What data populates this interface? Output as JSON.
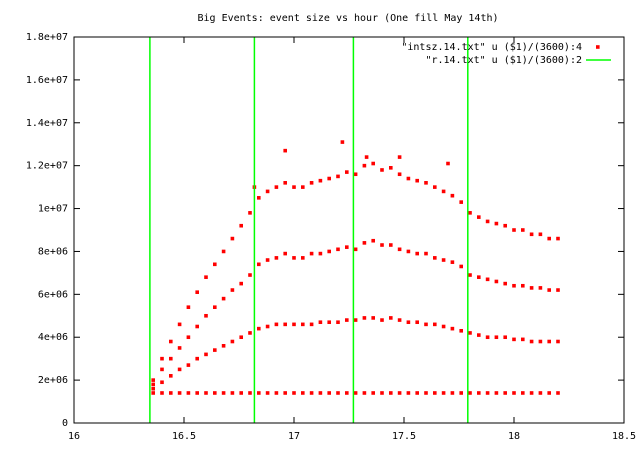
{
  "chart_data": {
    "type": "scatter",
    "title": "Big Events:  event size vs hour (One fill May 14th)",
    "xlim": [
      16,
      18.5
    ],
    "xticks": [
      16,
      16.5,
      17,
      17.5,
      18,
      18.5
    ],
    "ylim": [
      0,
      18000000
    ],
    "yticks": [
      0,
      {
        "value": 2000000,
        "label": "2e+06"
      },
      {
        "value": 4000000,
        "label": "4e+06"
      },
      {
        "value": 6000000,
        "label": "6e+06"
      },
      {
        "value": 8000000,
        "label": "8e+06"
      },
      {
        "value": 10000000,
        "label": "1e+07"
      },
      {
        "value": 12000000,
        "label": "1.2e+07"
      },
      {
        "value": 14000000,
        "label": "1.4e+07"
      },
      {
        "value": 16000000,
        "label": "1.6e+07"
      },
      {
        "value": 18000000,
        "label": "1.8e+07"
      }
    ],
    "grid": false,
    "legend": "top-right",
    "series": [
      {
        "name": "\"intsz.14.txt\" u ($1)/(3600):4",
        "color": "#ff0000",
        "style": "points",
        "x": [
          16.36,
          16.36,
          16.36,
          16.36,
          16.4,
          16.4,
          16.4,
          16.4,
          16.44,
          16.44,
          16.44,
          16.44,
          16.48,
          16.48,
          16.48,
          16.48,
          16.52,
          16.52,
          16.52,
          16.52,
          16.56,
          16.56,
          16.56,
          16.56,
          16.6,
          16.6,
          16.6,
          16.6,
          16.64,
          16.64,
          16.64,
          16.64,
          16.68,
          16.68,
          16.68,
          16.68,
          16.72,
          16.72,
          16.72,
          16.72,
          16.76,
          16.76,
          16.76,
          16.76,
          16.8,
          16.8,
          16.8,
          16.8,
          16.84,
          16.84,
          16.84,
          16.84,
          16.88,
          16.88,
          16.88,
          16.88,
          16.92,
          16.92,
          16.92,
          16.92,
          16.96,
          16.96,
          16.96,
          16.96,
          17,
          17,
          17,
          17,
          17.04,
          17.04,
          17.04,
          17.04,
          17.08,
          17.08,
          17.08,
          17.08,
          17.12,
          17.12,
          17.12,
          17.12,
          17.16,
          17.16,
          17.16,
          17.16,
          17.2,
          17.2,
          17.2,
          17.2,
          17.24,
          17.24,
          17.24,
          17.24,
          17.28,
          17.28,
          17.28,
          17.28,
          17.32,
          17.32,
          17.32,
          17.32,
          17.36,
          17.36,
          17.36,
          17.36,
          17.4,
          17.4,
          17.4,
          17.4,
          17.44,
          17.44,
          17.44,
          17.44,
          17.48,
          17.48,
          17.48,
          17.48,
          17.52,
          17.52,
          17.52,
          17.52,
          17.56,
          17.56,
          17.56,
          17.56,
          17.6,
          17.6,
          17.6,
          17.6,
          17.64,
          17.64,
          17.64,
          17.64,
          17.68,
          17.68,
          17.68,
          17.68,
          17.72,
          17.72,
          17.72,
          17.72,
          17.76,
          17.76,
          17.76,
          17.76,
          17.8,
          17.8,
          17.8,
          17.8,
          17.84,
          17.84,
          17.84,
          17.84,
          17.88,
          17.88,
          17.88,
          17.88,
          17.92,
          17.92,
          17.92,
          17.92,
          17.96,
          17.96,
          17.96,
          17.96,
          18,
          18,
          18,
          18,
          18.04,
          18.04,
          18.04,
          18.04,
          18.08,
          18.08,
          18.08,
          18.08,
          18.12,
          18.12,
          18.12,
          18.12,
          18.16,
          18.16,
          18.16,
          18.16,
          18.2,
          18.2,
          18.2,
          18.2,
          16.96,
          17.22,
          17.33,
          17.48,
          17.7,
          16.82
        ],
        "values": [
          1400000,
          1600000,
          1800000,
          2000000,
          1400000,
          1900000,
          2500000,
          3000000,
          1400000,
          2200000,
          3000000,
          3800000,
          1400000,
          2500000,
          3500000,
          4600000,
          1400000,
          2700000,
          4000000,
          5400000,
          1400000,
          3000000,
          4500000,
          6100000,
          1400000,
          3200000,
          5000000,
          6800000,
          1400000,
          3400000,
          5400000,
          7400000,
          1400000,
          3600000,
          5800000,
          8000000,
          1400000,
          3800000,
          6200000,
          8600000,
          1400000,
          4000000,
          6500000,
          9200000,
          1400000,
          4200000,
          6900000,
          9800000,
          1400000,
          4400000,
          7400000,
          10500000,
          1400000,
          4500000,
          7600000,
          10800000,
          1400000,
          4600000,
          7700000,
          11000000,
          1400000,
          4600000,
          7900000,
          11200000,
          1400000,
          4600000,
          7700000,
          11000000,
          1400000,
          4600000,
          7700000,
          11000000,
          1400000,
          4600000,
          7900000,
          11200000,
          1400000,
          4700000,
          7900000,
          11300000,
          1400000,
          4700000,
          8000000,
          11400000,
          1400000,
          4700000,
          8100000,
          11500000,
          1400000,
          4800000,
          8200000,
          11700000,
          1400000,
          4800000,
          8100000,
          11600000,
          1400000,
          4900000,
          8400000,
          12000000,
          1400000,
          4900000,
          8500000,
          12100000,
          1400000,
          4800000,
          8300000,
          11800000,
          1400000,
          4900000,
          8300000,
          11900000,
          1400000,
          4800000,
          8100000,
          11600000,
          1400000,
          4700000,
          8000000,
          11400000,
          1400000,
          4700000,
          7900000,
          11300000,
          1400000,
          4600000,
          7900000,
          11200000,
          1400000,
          4600000,
          7700000,
          11000000,
          1400000,
          4500000,
          7600000,
          10800000,
          1400000,
          4400000,
          7500000,
          10600000,
          1400000,
          4300000,
          7300000,
          10300000,
          1400000,
          4200000,
          6900000,
          9800000,
          1400000,
          4100000,
          6800000,
          9600000,
          1400000,
          4000000,
          6700000,
          9400000,
          1400000,
          4000000,
          6600000,
          9300000,
          1400000,
          4000000,
          6500000,
          9200000,
          1400000,
          3900000,
          6400000,
          9000000,
          1400000,
          3900000,
          6400000,
          9000000,
          1400000,
          3800000,
          6300000,
          8800000,
          1400000,
          3800000,
          6300000,
          8800000,
          1400000,
          3800000,
          6200000,
          8600000,
          1400000,
          3800000,
          6200000,
          8600000,
          12700000,
          13100000,
          12400000,
          12400000,
          12100000,
          11000000
        ]
      },
      {
        "name": "\"r.14.txt\" u ($1)/(3600):2",
        "color": "#00ff00",
        "style": "vertical-lines",
        "x": [
          16.345,
          16.82,
          17.27,
          17.79
        ]
      }
    ]
  }
}
